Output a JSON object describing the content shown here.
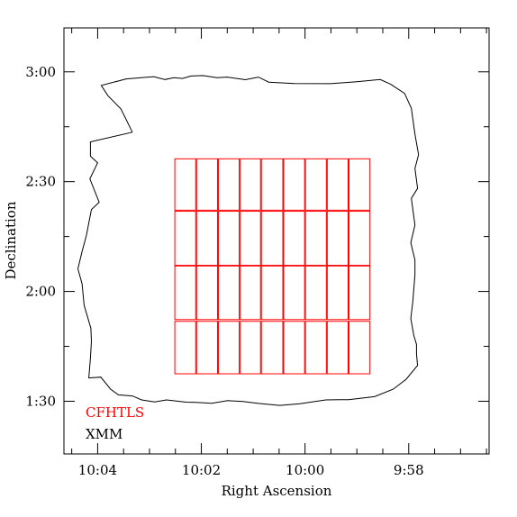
{
  "chart_data": {
    "type": "scatter",
    "xlabel": "Right Ascension",
    "ylabel": "Declination",
    "x_ticks": [
      {
        "label": "10:04",
        "ra_min": 604
      },
      {
        "label": "10:02",
        "ra_min": 602
      },
      {
        "label": "10:00",
        "ra_min": 600
      },
      {
        "label": "9:58",
        "ra_min": 598
      }
    ],
    "y_ticks": [
      {
        "label": "3:00",
        "dec_deg": 3.0
      },
      {
        "label": "2:30",
        "dec_deg": 2.5
      },
      {
        "label": "2:00",
        "dec_deg": 2.0
      },
      {
        "label": "1:30",
        "dec_deg": 1.5
      }
    ],
    "xlim": [
      604.65,
      596.45
    ],
    "ylim": [
      1.26,
      3.2
    ],
    "legend": [
      {
        "label": "CFHTLS",
        "color": "#ff0000"
      },
      {
        "label": "XMM",
        "color": "#000000"
      }
    ],
    "series": [
      {
        "name": "XMM",
        "color": "#000000",
        "kind": "outline",
        "points": [
          [
            603.33,
            2.725
          ],
          [
            603.55,
            2.831
          ],
          [
            603.8,
            2.891
          ],
          [
            603.93,
            2.938
          ],
          [
            603.45,
            2.968
          ],
          [
            602.92,
            2.978
          ],
          [
            602.7,
            2.965
          ],
          [
            602.53,
            2.973
          ],
          [
            602.36,
            2.97
          ],
          [
            602.2,
            2.981
          ],
          [
            601.97,
            2.983
          ],
          [
            601.7,
            2.973
          ],
          [
            601.5,
            2.976
          ],
          [
            601.15,
            2.964
          ],
          [
            600.9,
            2.976
          ],
          [
            600.7,
            2.953
          ],
          [
            600.2,
            2.947
          ],
          [
            599.5,
            2.946
          ],
          [
            599.0,
            2.955
          ],
          [
            598.55,
            2.965
          ],
          [
            598.35,
            2.944
          ],
          [
            598.08,
            2.902
          ],
          [
            597.95,
            2.834
          ],
          [
            597.88,
            2.716
          ],
          [
            597.81,
            2.623
          ],
          [
            597.88,
            2.56
          ],
          [
            597.83,
            2.469
          ],
          [
            597.95,
            2.424
          ],
          [
            597.88,
            2.302
          ],
          [
            597.96,
            2.222
          ],
          [
            597.88,
            2.143
          ],
          [
            597.88,
            2.077
          ],
          [
            597.92,
            1.957
          ],
          [
            597.96,
            1.877
          ],
          [
            597.9,
            1.798
          ],
          [
            597.85,
            1.759
          ],
          [
            597.85,
            1.717
          ],
          [
            597.83,
            1.663
          ],
          [
            598.05,
            1.6
          ],
          [
            598.3,
            1.555
          ],
          [
            598.66,
            1.521
          ],
          [
            599.16,
            1.507
          ],
          [
            599.35,
            1.507
          ],
          [
            599.6,
            1.506
          ],
          [
            600.1,
            1.489
          ],
          [
            600.49,
            1.481
          ],
          [
            600.9,
            1.49
          ],
          [
            601.2,
            1.499
          ],
          [
            601.49,
            1.503
          ],
          [
            601.8,
            1.491
          ],
          [
            602.1,
            1.495
          ],
          [
            602.29,
            1.496
          ],
          [
            602.67,
            1.506
          ],
          [
            602.9,
            1.497
          ],
          [
            603.15,
            1.506
          ],
          [
            603.33,
            1.524
          ],
          [
            603.6,
            1.529
          ],
          [
            603.75,
            1.555
          ],
          [
            603.94,
            1.61
          ],
          [
            604.17,
            1.606
          ],
          [
            604.14,
            1.697
          ],
          [
            604.12,
            1.773
          ],
          [
            604.13,
            1.832
          ],
          [
            604.26,
            1.937
          ],
          [
            604.3,
            2.035
          ],
          [
            604.38,
            2.103
          ],
          [
            604.3,
            2.182
          ],
          [
            604.22,
            2.253
          ],
          [
            604.12,
            2.373
          ],
          [
            603.97,
            2.406
          ],
          [
            604.15,
            2.513
          ],
          [
            604.0,
            2.586
          ],
          [
            604.14,
            2.616
          ],
          [
            604.14,
            2.681
          ],
          [
            603.33,
            2.725
          ]
        ]
      },
      {
        "name": "CFHTLS",
        "color": "#ff0000",
        "kind": "tile-grid",
        "columns_ra": [
          602.52,
          602.1,
          601.68,
          601.26,
          600.85,
          600.42,
          600.0,
          599.58,
          599.16,
          598.74
        ],
        "rows_dec": [
          [
            2.37,
            2.604
          ],
          [
            2.119,
            2.365
          ],
          [
            1.872,
            2.116
          ],
          [
            1.625,
            1.864
          ]
        ]
      }
    ]
  }
}
